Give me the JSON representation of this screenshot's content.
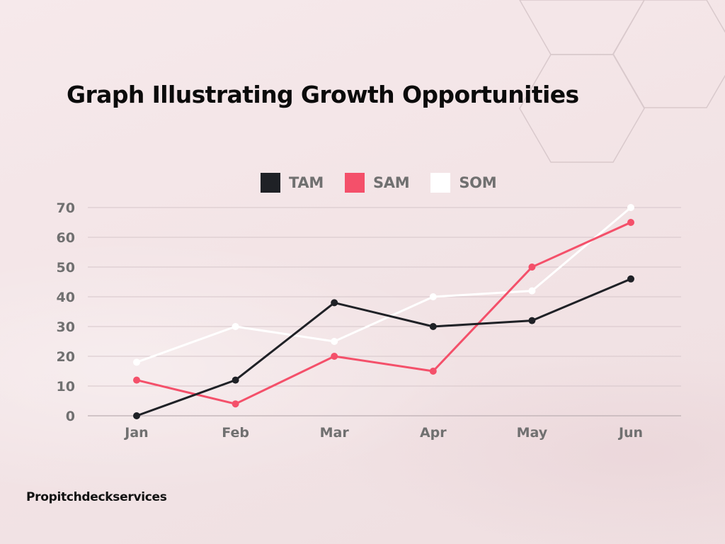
{
  "title": "Graph Illustrating Growth Opportunities",
  "footer": "Propitchdeckservices",
  "colors": {
    "background": "#f3e4e6",
    "grid": "#d6c6ca",
    "tick_text": "#707070",
    "title_text": "#0b0b0b"
  },
  "chart_data": {
    "type": "line",
    "title": "Graph Illustrating Growth Opportunities",
    "xlabel": "",
    "ylabel": "",
    "categories": [
      "Jan",
      "Feb",
      "Mar",
      "Apr",
      "May",
      "Jun"
    ],
    "yticks": [
      0,
      10,
      20,
      30,
      40,
      50,
      60,
      70
    ],
    "ylim": [
      0,
      70
    ],
    "grid": true,
    "legend_position": "top-center",
    "series": [
      {
        "name": "TAM",
        "color": "#1f2126",
        "values": [
          0,
          12,
          38,
          30,
          32,
          46
        ]
      },
      {
        "name": "SAM",
        "color": "#f4506a",
        "values": [
          12,
          4,
          20,
          15,
          50,
          65
        ]
      },
      {
        "name": "SOM",
        "color": "#ffffff",
        "values": [
          18,
          30,
          25,
          40,
          42,
          70
        ]
      }
    ]
  }
}
